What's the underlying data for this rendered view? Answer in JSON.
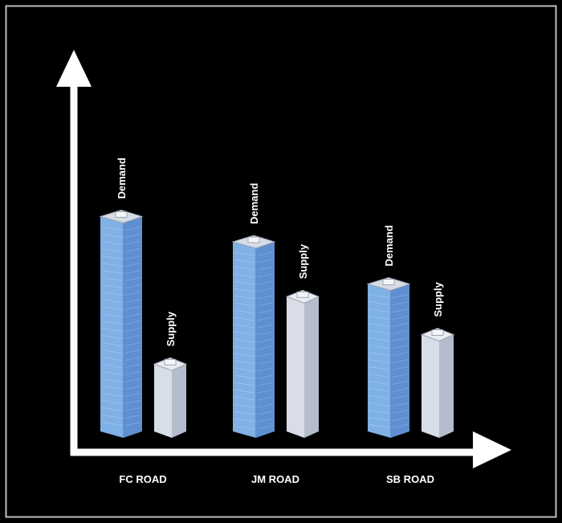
{
  "chart_data": {
    "type": "bar",
    "categories": [
      "FC ROAD",
      "JM ROAD",
      "SB ROAD"
    ],
    "series": [
      {
        "name": "Demand",
        "values": [
          2.7,
          2.4,
          1.9
        ]
      },
      {
        "name": "Supply",
        "values": [
          0.95,
          1.75,
          1.3
        ]
      }
    ],
    "ylim": [
      0,
      4.6
    ],
    "grid": false,
    "legend": "none",
    "colors": {
      "background": "#000000",
      "frame": "#bdbdbd",
      "axis": "#ffffff",
      "demand_face": "#7fb0e6",
      "demand_side": "#5f8fd0",
      "demand_top": "#d7dde6",
      "supply_face": "#d8dde8",
      "supply_side": "#b5bdcc",
      "supply_top": "#e9edf2",
      "label": "#ffffff"
    }
  }
}
